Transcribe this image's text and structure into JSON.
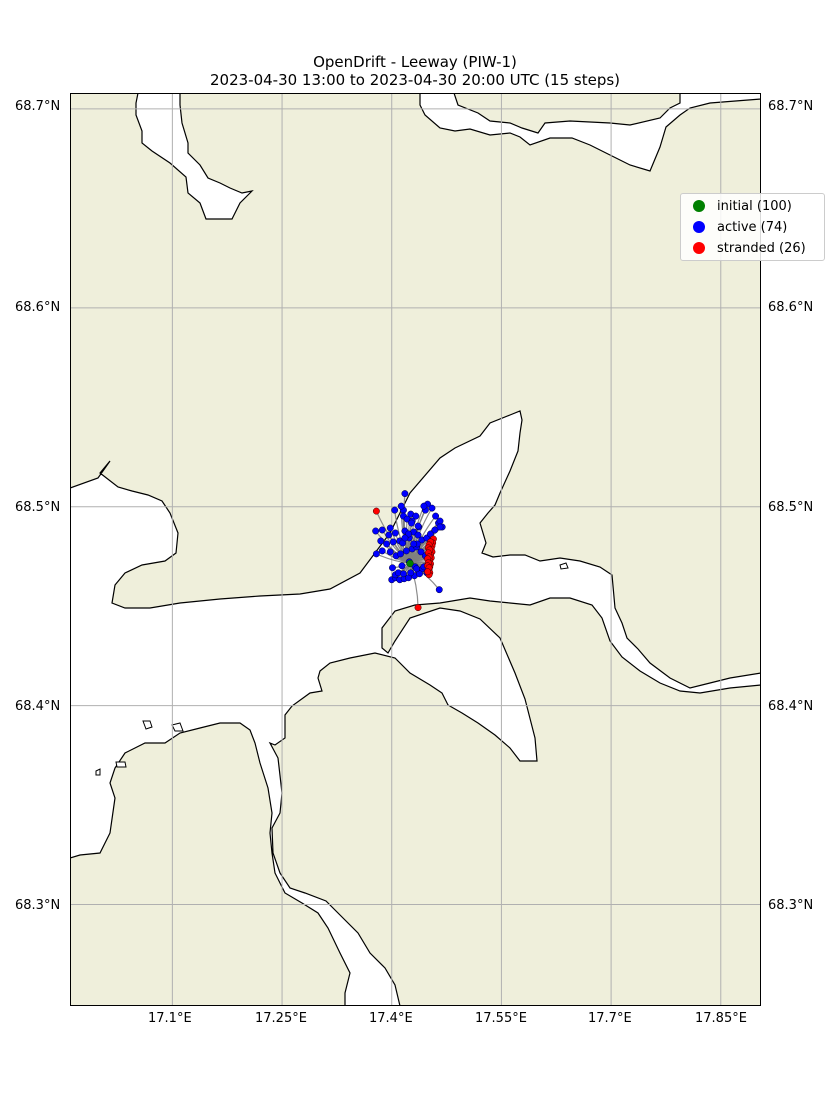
{
  "figure": {
    "title_line1": "OpenDrift - Leeway (PIW-1)",
    "title_line2": "2023-04-30 13:00 to 2023-04-30 20:00 UTC (15 steps)"
  },
  "colors": {
    "land": "#efefdb",
    "water": "#ffffff",
    "coastline": "#000000",
    "grid": "#b0b0b0",
    "trajectory": "#808080",
    "initial": "#008000",
    "active": "#0000ff",
    "stranded": "#ff0000"
  },
  "axes": {
    "x_ticks": [
      "17.1°E",
      "17.25°E",
      "17.4°E",
      "17.55°E",
      "17.7°E",
      "17.85°E"
    ],
    "y_ticks_left": [
      "68.7°N",
      "68.6°N",
      "68.5°N",
      "68.4°N",
      "68.3°N"
    ],
    "y_ticks_right": [
      "68.7°N",
      "68.6°N",
      "68.5°N",
      "68.4°N",
      "68.3°N"
    ]
  },
  "legend": {
    "items": [
      {
        "label": "initial (100)",
        "color": "#008000"
      },
      {
        "label": "active (74)",
        "color": "#0000ff"
      },
      {
        "label": "stranded (26)",
        "color": "#ff0000"
      }
    ]
  },
  "chart_data": {
    "type": "scatter",
    "projection": "lon/lat",
    "xlim": [
      16.96,
      17.905
    ],
    "ylim": [
      68.249,
      68.708
    ],
    "grid": true,
    "legend_placement": "top-right",
    "seed": {
      "lon": 17.425,
      "lat": 68.4715,
      "count": 100
    },
    "active": [
      [
        17.418,
        68.5066
      ],
      [
        17.404,
        68.4983
      ],
      [
        17.416,
        68.4983
      ],
      [
        17.426,
        68.4963
      ],
      [
        17.433,
        68.4953
      ],
      [
        17.446,
        68.4983
      ],
      [
        17.449,
        68.5013
      ],
      [
        17.455,
        68.4993
      ],
      [
        17.46,
        68.4953
      ],
      [
        17.464,
        68.4918
      ],
      [
        17.469,
        68.4898
      ],
      [
        17.466,
        68.4928
      ],
      [
        17.413,
        68.5003
      ],
      [
        17.416,
        68.4953
      ],
      [
        17.421,
        68.4938
      ],
      [
        17.428,
        68.4928
      ],
      [
        17.437,
        68.4898
      ],
      [
        17.444,
        68.5003
      ],
      [
        17.398,
        68.4893
      ],
      [
        17.396,
        68.4858
      ],
      [
        17.405,
        68.4868
      ],
      [
        17.387,
        68.4883
      ],
      [
        17.378,
        68.4878
      ],
      [
        17.385,
        68.4828
      ],
      [
        17.393,
        68.4813
      ],
      [
        17.402,
        68.4823
      ],
      [
        17.411,
        68.4828
      ],
      [
        17.415,
        68.4818
      ],
      [
        17.43,
        68.4873
      ],
      [
        17.436,
        68.4858
      ],
      [
        17.441,
        68.4833
      ],
      [
        17.448,
        68.4843
      ],
      [
        17.453,
        68.4863
      ],
      [
        17.459,
        68.4883
      ],
      [
        17.466,
        68.4898
      ],
      [
        17.379,
        68.4763
      ],
      [
        17.387,
        68.4778
      ],
      [
        17.398,
        68.4773
      ],
      [
        17.406,
        68.4753
      ],
      [
        17.412,
        68.4763
      ],
      [
        17.42,
        68.4778
      ],
      [
        17.428,
        68.4788
      ],
      [
        17.434,
        68.4798
      ],
      [
        17.44,
        68.4773
      ],
      [
        17.446,
        68.4753
      ],
      [
        17.401,
        68.4693
      ],
      [
        17.414,
        68.4703
      ],
      [
        17.424,
        68.4723
      ],
      [
        17.432,
        68.4698
      ],
      [
        17.437,
        68.4668
      ],
      [
        17.442,
        68.4688
      ],
      [
        17.448,
        68.4668
      ],
      [
        17.4,
        68.4633
      ],
      [
        17.405,
        68.4643
      ],
      [
        17.411,
        68.4633
      ],
      [
        17.417,
        68.4638
      ],
      [
        17.423,
        68.4643
      ],
      [
        17.431,
        68.4653
      ],
      [
        17.438,
        68.4663
      ],
      [
        17.405,
        68.4658
      ],
      [
        17.409,
        68.4668
      ],
      [
        17.416,
        68.4663
      ],
      [
        17.426,
        68.4668
      ],
      [
        17.434,
        68.4688
      ],
      [
        17.444,
        68.4698
      ],
      [
        17.436,
        68.4903
      ],
      [
        17.427,
        68.4918
      ],
      [
        17.418,
        68.4878
      ],
      [
        17.435,
        68.4813
      ],
      [
        17.424,
        68.4843
      ],
      [
        17.423,
        68.4863
      ],
      [
        17.465,
        68.4583
      ],
      [
        17.418,
        68.4843
      ],
      [
        17.43,
        68.4813
      ]
    ],
    "stranded": [
      [
        17.379,
        68.4978
      ],
      [
        17.436,
        68.4493
      ],
      [
        17.457,
        68.4838
      ],
      [
        17.456,
        68.4818
      ],
      [
        17.455,
        68.4803
      ],
      [
        17.454,
        68.4788
      ],
      [
        17.455,
        68.4773
      ],
      [
        17.453,
        68.4758
      ],
      [
        17.454,
        68.4743
      ],
      [
        17.452,
        68.4728
      ],
      [
        17.453,
        68.4713
      ],
      [
        17.452,
        68.4698
      ],
      [
        17.451,
        68.4683
      ],
      [
        17.452,
        68.4668
      ],
      [
        17.451,
        68.4658
      ],
      [
        17.453,
        68.4823
      ],
      [
        17.451,
        68.4808
      ],
      [
        17.45,
        68.4793
      ],
      [
        17.452,
        68.4783
      ],
      [
        17.45,
        68.4768
      ],
      [
        17.451,
        68.4748
      ],
      [
        17.449,
        68.4738
      ],
      [
        17.45,
        68.4718
      ],
      [
        17.449,
        68.4703
      ],
      [
        17.451,
        68.4693
      ],
      [
        17.449,
        68.4673
      ]
    ]
  }
}
